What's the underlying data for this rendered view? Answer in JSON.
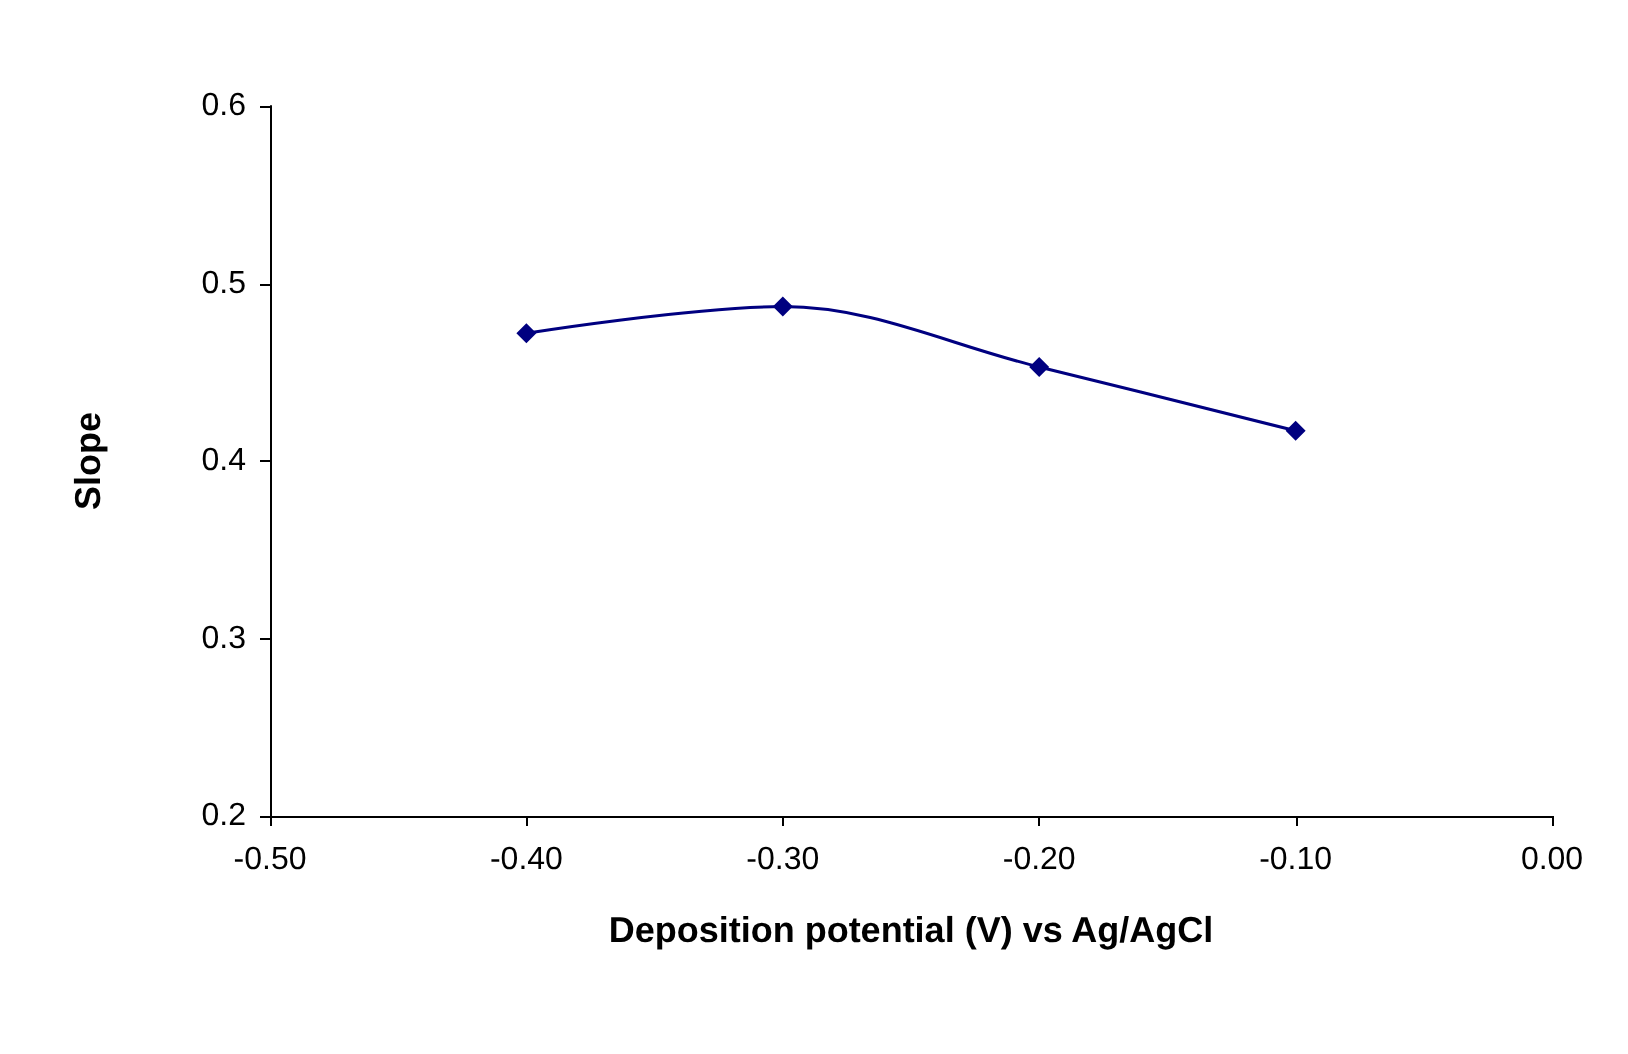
{
  "chart_data": {
    "type": "line",
    "xlabel": "Deposition potential (V) vs Ag/AgCl",
    "ylabel": "Slope",
    "x": [
      -0.4,
      -0.3,
      -0.2,
      -0.1
    ],
    "series": [
      {
        "color": "#000080",
        "values": [
          0.472,
          0.487,
          0.453,
          0.417
        ]
      }
    ],
    "xlim": [
      -0.5,
      0.0
    ],
    "xticks": [
      {
        "value": -0.5,
        "label": "-0.50"
      },
      {
        "value": -0.4,
        "label": "-0.40"
      },
      {
        "value": -0.3,
        "label": "-0.30"
      },
      {
        "value": -0.2,
        "label": "-0.20"
      },
      {
        "value": -0.1,
        "label": "-0.10"
      },
      {
        "value": 0.0,
        "label": "0.00"
      }
    ],
    "ylim": [
      0.2,
      0.6
    ],
    "yticks": [
      0.2,
      0.3,
      0.4,
      0.5,
      0.6
    ],
    "grid": false,
    "marker": "diamond",
    "line_style": "solid"
  }
}
